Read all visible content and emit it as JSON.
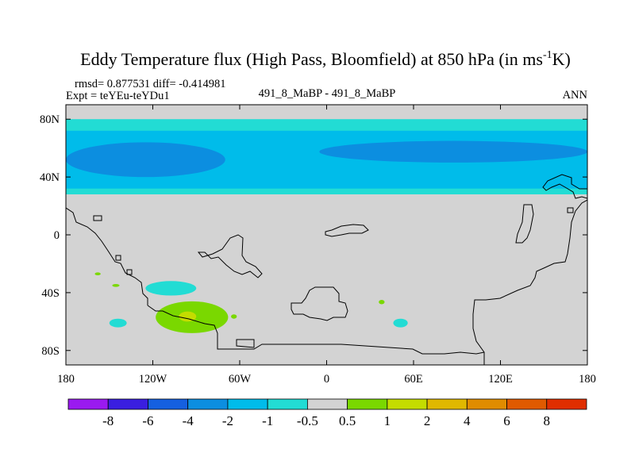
{
  "chart_data": {
    "type": "contour-map",
    "title_main": "Eddy Temperature flux (High Pass, Bloomfield) at 850 hPa (in ms",
    "title_sup": "-1",
    "title_end": "K)",
    "stats": "rmsd= 0.877531 diff= -0.414981",
    "expt": "Expt = teYEu-teYDu1",
    "case": "491_8_MaBP - 491_8_MaBP",
    "season": "ANN",
    "lon_range": [
      -180,
      180
    ],
    "lat_range": [
      -90,
      90
    ],
    "x_ticks": [
      {
        "value": -180,
        "label": "180"
      },
      {
        "value": -120,
        "label": "120W"
      },
      {
        "value": -60,
        "label": "60W"
      },
      {
        "value": 0,
        "label": "0"
      },
      {
        "value": 60,
        "label": "60E"
      },
      {
        "value": 120,
        "label": "120E"
      },
      {
        "value": 180,
        "label": "180"
      }
    ],
    "y_ticks": [
      {
        "value": 80,
        "label": "80N"
      },
      {
        "value": 40,
        "label": "40N"
      },
      {
        "value": 0,
        "label": "0"
      },
      {
        "value": -40,
        "label": "40S"
      },
      {
        "value": -80,
        "label": "80S"
      }
    ],
    "colorbar": {
      "levels": [
        "-8",
        "-6",
        "-4",
        "-2",
        "-1",
        "-0.5",
        "0.5",
        "1",
        "2",
        "4",
        "6",
        "8"
      ],
      "colors": [
        "#9a1af0",
        "#3a1ee0",
        "#1560e0",
        "#0c8ee0",
        "#00bcea",
        "#22dcd4",
        "#d3d3d3",
        "#7ad800",
        "#c4dc00",
        "#e0b800",
        "#e08c00",
        "#e05a00",
        "#e02e00"
      ]
    },
    "regions": [
      {
        "name": "nh-band-minus-0.5",
        "color": "#22dcd4",
        "lon": [
          -180,
          180
        ],
        "lat": [
          28,
          80
        ]
      },
      {
        "name": "nh-band-minus-1",
        "color": "#00bcea",
        "lon": [
          -180,
          180
        ],
        "lat": [
          32,
          72
        ]
      },
      {
        "name": "nh-core-west-minus-2",
        "color": "#0c8ee0",
        "lon": [
          -180,
          -70
        ],
        "lat": [
          40,
          64
        ]
      },
      {
        "name": "nh-core-east-minus-2",
        "color": "#0c8ee0",
        "lon": [
          -5,
          180
        ],
        "lat": [
          50,
          65
        ]
      },
      {
        "name": "so-pacific-minus-0.5",
        "color": "#22dcd4",
        "lon": [
          -125,
          -90
        ],
        "lat": [
          -42,
          -32
        ]
      },
      {
        "name": "so-pacific-minus-0.5-b",
        "color": "#22dcd4",
        "lon": [
          -150,
          -138
        ],
        "lat": [
          -64,
          -58
        ]
      },
      {
        "name": "so-indian-minus-0.5",
        "color": "#22dcd4",
        "lon": [
          46,
          56
        ],
        "lat": [
          -64,
          -58
        ]
      },
      {
        "name": "so-pacific-plus-1",
        "color": "#7ad800",
        "lon": [
          -118,
          -68
        ],
        "lat": [
          -68,
          -46
        ]
      },
      {
        "name": "so-pacific-plus-2",
        "color": "#c4dc00",
        "lon": [
          -102,
          -90
        ],
        "lat": [
          -60,
          -53
        ]
      },
      {
        "name": "small-plus-1-a",
        "color": "#7ad800",
        "lon": [
          -160,
          -156
        ],
        "lat": [
          -28,
          -26
        ]
      },
      {
        "name": "small-plus-1-b",
        "color": "#7ad800",
        "lon": [
          -148,
          -143
        ],
        "lat": [
          -36,
          -34
        ]
      },
      {
        "name": "small-plus-1-c",
        "color": "#7ad800",
        "lon": [
          -66,
          -62
        ],
        "lat": [
          -58,
          -55
        ]
      },
      {
        "name": "small-plus-1-d",
        "color": "#7ad800",
        "lon": [
          36,
          40
        ],
        "lat": [
          -48,
          -45
        ]
      }
    ]
  }
}
